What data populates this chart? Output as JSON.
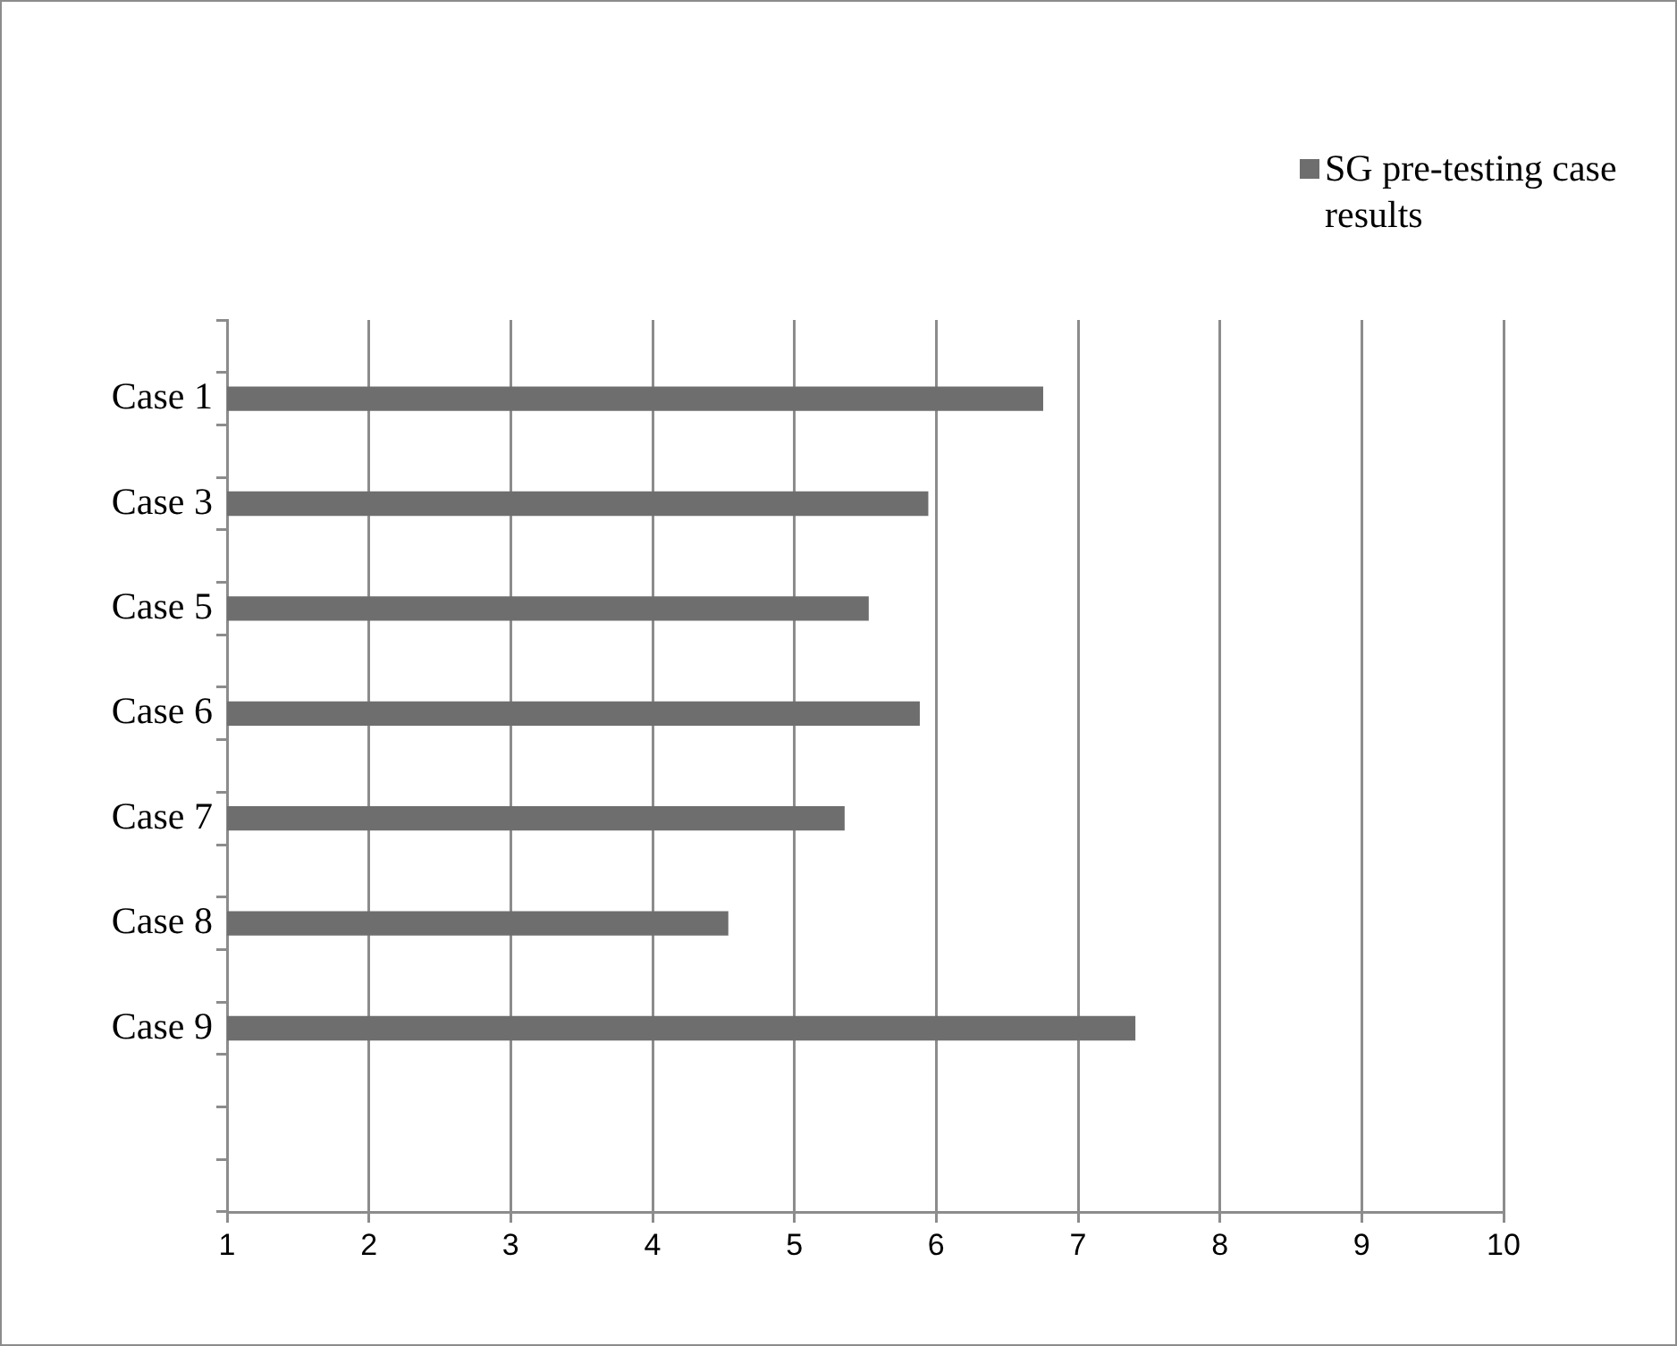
{
  "chart_data": {
    "type": "bar",
    "orientation": "horizontal",
    "categories": [
      null,
      "Case 1",
      null,
      "Case 3",
      null,
      "Case 5",
      null,
      "Case 6",
      null,
      "Case 7",
      null,
      "Case 8",
      null,
      "Case 9",
      null,
      null,
      null
    ],
    "series": [
      {
        "name": "SG pre-testing case results",
        "color": "#6e6e6e",
        "values": [
          null,
          6.75,
          null,
          5.94,
          null,
          5.52,
          null,
          5.88,
          null,
          5.35,
          null,
          4.53,
          null,
          7.4,
          null,
          null,
          null
        ]
      }
    ],
    "xlim": [
      1,
      10
    ],
    "xticks": [
      1,
      2,
      3,
      4,
      5,
      6,
      7,
      8,
      9,
      10
    ],
    "grid": "x",
    "legend": "top right"
  }
}
